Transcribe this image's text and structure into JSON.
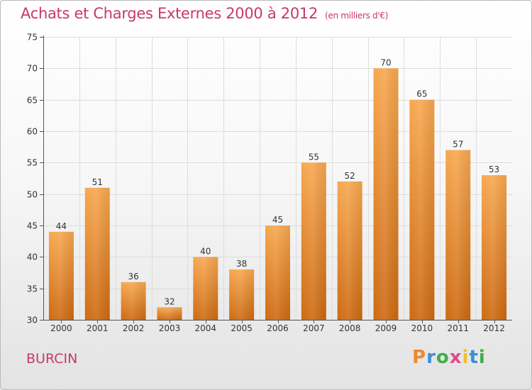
{
  "title": "Achats et Charges Externes 2000 à 2012",
  "subtitle": "(en milliers d'€)",
  "commune": "BURCIN",
  "logo": {
    "text": "Proxiti",
    "letters": [
      "P",
      "r",
      "o",
      "x",
      "i",
      "t",
      "i"
    ],
    "colors": [
      "#f0892c",
      "#3a8fd6",
      "#3fae49",
      "#e04a8a",
      "#f0c030",
      "#3a8fd6",
      "#3fae49"
    ]
  },
  "colors": {
    "bar_light": "#f7a850",
    "bar_dark": "#cd6a12",
    "accent": "#c8386a",
    "grid": "#dddddd"
  },
  "chart_data": {
    "type": "bar",
    "categories": [
      "2000",
      "2001",
      "2002",
      "2003",
      "2004",
      "2005",
      "2006",
      "2007",
      "2008",
      "2009",
      "2010",
      "2011",
      "2012"
    ],
    "values": [
      44,
      51,
      36,
      32,
      40,
      38,
      45,
      55,
      52,
      70,
      65,
      57,
      53
    ],
    "ylim": [
      30,
      75
    ],
    "yticks": [
      30,
      35,
      40,
      45,
      50,
      55,
      60,
      65,
      70,
      75
    ],
    "grid": true,
    "legend": "none"
  }
}
